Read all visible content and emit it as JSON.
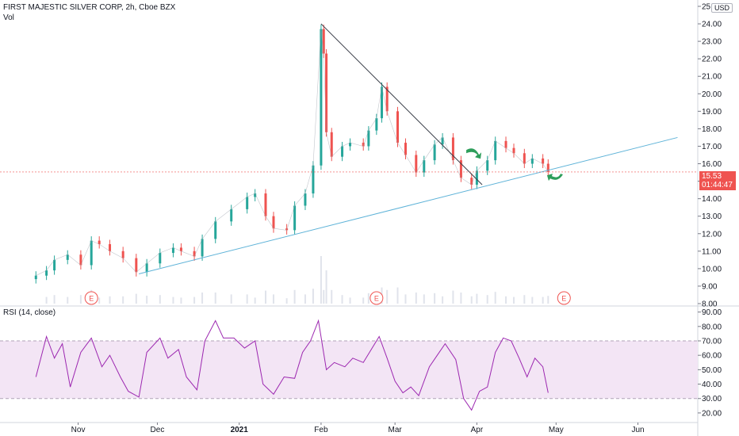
{
  "header": {
    "title": "FIRST MAJESTIC SILVER CORP, 2h, Cboe BZX",
    "vol_label": "Vol",
    "currency": "USD"
  },
  "price_badge": {
    "price": "15.53",
    "countdown": "01:44:47"
  },
  "rsi_panel": {
    "label": "RSI (14, close)"
  },
  "earnings_marker": "E",
  "colors": {
    "up": "#26a69a",
    "down": "#ef5350",
    "rsi": "#9c27b0",
    "rsi_band": "#f3e5f5",
    "trendline_upper": "#363a45",
    "trendline_lower": "#5fb3d8",
    "arrow": "#2e9e5b",
    "volume": "#e0e3eb"
  },
  "chart_data": [
    {
      "type": "candlestick",
      "title": "FIRST MAJESTIC SILVER CORP, 2h, Cboe BZX",
      "ylim": [
        8,
        25
      ],
      "yticks": [
        "8.00",
        "9.00",
        "10.00",
        "11.00",
        "12.00",
        "13.00",
        "14.00",
        "15.00",
        "16.00",
        "17.00",
        "18.00",
        "19.00",
        "20.00",
        "21.00",
        "22.00",
        "23.00",
        "24.00",
        "25.00"
      ],
      "xticks": [
        "Nov",
        "Dec",
        "2021",
        "Feb",
        "Mar",
        "Apr",
        "May",
        "Jun"
      ],
      "last_price": 15.53,
      "series": [
        {
          "name": "close",
          "points": [
            [
              "Oct 16",
              9.6
            ],
            [
              "Oct 20",
              9.9
            ],
            [
              "Oct 23",
              10.5
            ],
            [
              "Oct 28",
              10.8
            ],
            [
              "Nov 2",
              10.2
            ],
            [
              "Nov 6",
              11.6
            ],
            [
              "Nov 9",
              11.4
            ],
            [
              "Nov 13",
              11.0
            ],
            [
              "Nov 18",
              10.6
            ],
            [
              "Nov 23",
              9.8
            ],
            [
              "Nov 27",
              10.3
            ],
            [
              "Dec 2",
              10.9
            ],
            [
              "Dec 7",
              11.2
            ],
            [
              "Dec 10",
              11.0
            ],
            [
              "Dec 15",
              10.7
            ],
            [
              "Dec 18",
              11.7
            ],
            [
              "Dec 23",
              12.7
            ],
            [
              "Dec 29",
              13.4
            ],
            [
              "Jan 4",
              14.1
            ],
            [
              "Jan 7",
              14.3
            ],
            [
              "Jan 11",
              13.0
            ],
            [
              "Jan 14",
              12.3
            ],
            [
              "Jan 19",
              12.2
            ],
            [
              "Jan 22",
              13.6
            ],
            [
              "Jan 26",
              14.3
            ],
            [
              "Jan 29",
              15.9
            ],
            [
              "Feb 1",
              23.7
            ],
            [
              "Feb 2",
              22.3
            ],
            [
              "Feb 3",
              17.8
            ],
            [
              "Feb 5",
              16.4
            ],
            [
              "Feb 9",
              17.0
            ],
            [
              "Feb 12",
              17.2
            ],
            [
              "Feb 17",
              17.0
            ],
            [
              "Feb 19",
              17.9
            ],
            [
              "Feb 22",
              18.6
            ],
            [
              "Feb 24",
              20.4
            ],
            [
              "Feb 26",
              19.0
            ],
            [
              "Mar 2",
              17.2
            ],
            [
              "Mar 5",
              16.5
            ],
            [
              "Mar 9",
              15.5
            ],
            [
              "Mar 12",
              16.2
            ],
            [
              "Mar 16",
              17.1
            ],
            [
              "Mar 19",
              17.5
            ],
            [
              "Mar 23",
              16.2
            ],
            [
              "Mar 26",
              15.2
            ],
            [
              "Mar 30",
              14.8
            ],
            [
              "Apr 1",
              15.6
            ],
            [
              "Apr 5",
              16.2
            ],
            [
              "Apr 8",
              17.3
            ],
            [
              "Apr 12",
              16.9
            ],
            [
              "Apr 15",
              16.6
            ],
            [
              "Apr 19",
              16.0
            ],
            [
              "Apr 22",
              16.3
            ],
            [
              "Apr 26",
              16.0
            ],
            [
              "Apr 28",
              15.53
            ]
          ]
        }
      ],
      "annotations": {
        "trendline_upper": {
          "from": [
            "Feb 1",
            24.0
          ],
          "to": [
            "Apr 3",
            14.8
          ]
        },
        "trendline_lower": {
          "from": [
            "Nov 24",
            9.7
          ],
          "to": [
            "Jun 16",
            17.5
          ]
        },
        "earnings_markers": [
          "Nov 6",
          "Feb 22",
          "May 4"
        ],
        "arrows": [
          "Mar 31",
          "Apr 30"
        ]
      }
    },
    {
      "type": "line",
      "title": "RSI (14, close)",
      "ylim": [
        15,
        92
      ],
      "yticks": [
        "20.00",
        "30.00",
        "40.00",
        "50.00",
        "60.00",
        "70.00",
        "80.00",
        "90.00"
      ],
      "bands": [
        30,
        70
      ],
      "series": [
        {
          "name": "RSI (14, close)",
          "points": [
            [
              "Oct 16",
              45
            ],
            [
              "Oct 20",
              73
            ],
            [
              "Oct 23",
              58
            ],
            [
              "Oct 26",
              68
            ],
            [
              "Oct 29",
              38
            ],
            [
              "Nov 2",
              62
            ],
            [
              "Nov 6",
              72
            ],
            [
              "Nov 10",
              52
            ],
            [
              "Nov 13",
              60
            ],
            [
              "Nov 17",
              45
            ],
            [
              "Nov 20",
              35
            ],
            [
              "Nov 24",
              31
            ],
            [
              "Nov 27",
              62
            ],
            [
              "Dec 2",
              72
            ],
            [
              "Dec 5",
              58
            ],
            [
              "Dec 9",
              64
            ],
            [
              "Dec 12",
              45
            ],
            [
              "Dec 16",
              36
            ],
            [
              "Dec 19",
              70
            ],
            [
              "Dec 23",
              84
            ],
            [
              "Dec 26",
              72
            ],
            [
              "Dec 30",
              72
            ],
            [
              "Jan 3",
              65
            ],
            [
              "Jan 7",
              70
            ],
            [
              "Jan 10",
              40
            ],
            [
              "Jan 14",
              33
            ],
            [
              "Jan 18",
              45
            ],
            [
              "Jan 22",
              44
            ],
            [
              "Jan 25",
              62
            ],
            [
              "Jan 28",
              70
            ],
            [
              "Jan 31",
              84
            ],
            [
              "Feb 3",
              50
            ],
            [
              "Feb 6",
              55
            ],
            [
              "Feb 10",
              52
            ],
            [
              "Feb 13",
              58
            ],
            [
              "Feb 17",
              55
            ],
            [
              "Feb 20",
              64
            ],
            [
              "Feb 23",
              73
            ],
            [
              "Feb 26",
              58
            ],
            [
              "Mar 1",
              42
            ],
            [
              "Mar 4",
              34
            ],
            [
              "Mar 7",
              38
            ],
            [
              "Mar 10",
              32
            ],
            [
              "Mar 14",
              52
            ],
            [
              "Mar 17",
              60
            ],
            [
              "Mar 20",
              68
            ],
            [
              "Mar 24",
              57
            ],
            [
              "Mar 27",
              30
            ],
            [
              "Mar 30",
              22
            ],
            [
              "Apr 2",
              35
            ],
            [
              "Apr 5",
              38
            ],
            [
              "Apr 8",
              62
            ],
            [
              "Apr 11",
              72
            ],
            [
              "Apr 14",
              70
            ],
            [
              "Apr 17",
              58
            ],
            [
              "Apr 20",
              45
            ],
            [
              "Apr 23",
              58
            ],
            [
              "Apr 26",
              52
            ],
            [
              "Apr 28",
              34
            ]
          ]
        }
      ]
    }
  ]
}
